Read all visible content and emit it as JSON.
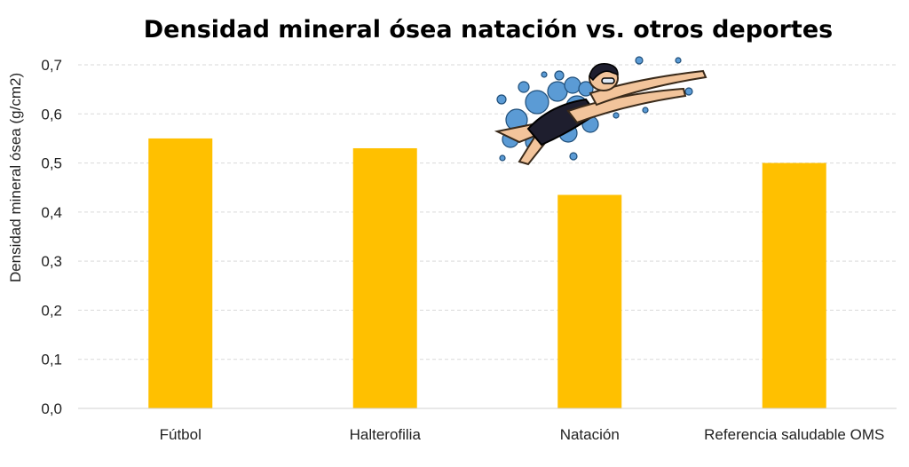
{
  "chart_data": {
    "type": "bar",
    "title": "Densidad mineral ósea natación vs. otros deportes",
    "xlabel": "",
    "ylabel": "Densidad mineral ósea (g/cm2)",
    "categories": [
      "Fútbol",
      "Halterofilia",
      "Natación",
      "Referencia saludable OMS"
    ],
    "values": [
      0.55,
      0.53,
      0.435,
      0.5
    ],
    "ylim": [
      0,
      0.7
    ],
    "yticks": [
      "0,0",
      "0,1",
      "0,2",
      "0,3",
      "0,4",
      "0,5",
      "0,6",
      "0,7"
    ],
    "grid": true,
    "bar_color": "#FFC000",
    "decoration": "swimmer-illustration"
  }
}
